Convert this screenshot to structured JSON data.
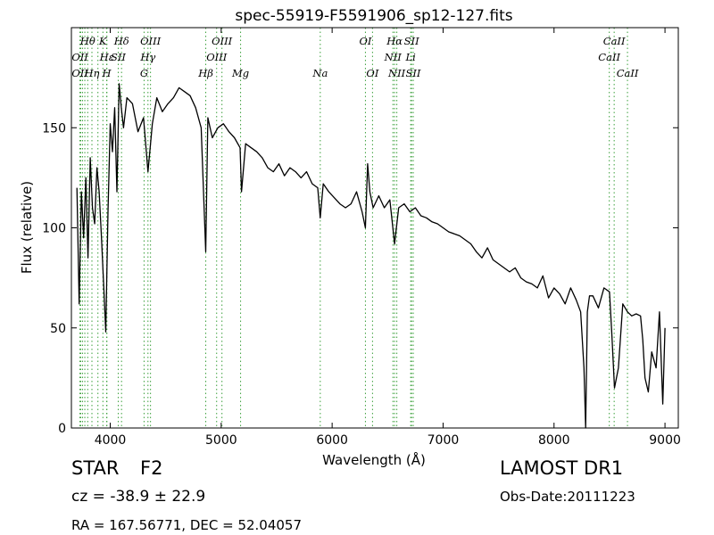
{
  "chart_data": {
    "type": "line",
    "title": "spec-55919-F5591906_sp12-127.fits",
    "xlabel": "Wavelength (Å)",
    "ylabel": "Flux (relative)",
    "xlim": [
      3650,
      9120
    ],
    "ylim": [
      0,
      200
    ],
    "x_ticks": [
      4000,
      5000,
      6000,
      7000,
      8000,
      9000
    ],
    "y_ticks": [
      0,
      50,
      100,
      150
    ],
    "grid": false,
    "line_color": "#000000",
    "marker_color": "#3ca03c",
    "series": [
      {
        "x": [
          3700,
          3720,
          3740,
          3760,
          3780,
          3800,
          3820,
          3840,
          3860,
          3880,
          3900,
          3920,
          3940,
          3960,
          3980,
          4000,
          4020,
          4040,
          4060,
          4080,
          4100,
          4120,
          4150,
          4200,
          4250,
          4300,
          4340,
          4380,
          4420,
          4470,
          4520,
          4570,
          4620,
          4670,
          4720,
          4770,
          4820,
          4861,
          4880,
          4920,
          4970,
          5020,
          5070,
          5120,
          5170,
          5183,
          5220,
          5270,
          5320,
          5370,
          5420,
          5470,
          5520,
          5570,
          5620,
          5670,
          5720,
          5770,
          5820,
          5870,
          5893,
          5920,
          5970,
          6020,
          6070,
          6120,
          6170,
          6220,
          6270,
          6300,
          6320,
          6340,
          6370,
          6420,
          6470,
          6520,
          6563,
          6600,
          6650,
          6700,
          6750,
          6800,
          6850,
          6900,
          6950,
          7000,
          7050,
          7100,
          7150,
          7200,
          7250,
          7300,
          7350,
          7400,
          7450,
          7500,
          7550,
          7600,
          7650,
          7700,
          7750,
          7800,
          7850,
          7900,
          7950,
          8000,
          8050,
          8100,
          8150,
          8200,
          8240,
          8270,
          8285,
          8300,
          8320,
          8350,
          8400,
          8450,
          8500,
          8520,
          8545,
          8580,
          8620,
          8662,
          8700,
          8740,
          8780,
          8800,
          8820,
          8850,
          8880,
          8920,
          8950,
          8980,
          9000
        ],
        "values": [
          120,
          62,
          118,
          95,
          125,
          85,
          135,
          110,
          102,
          130,
          118,
          96,
          72,
          48,
          108,
          152,
          138,
          160,
          118,
          172,
          160,
          150,
          165,
          162,
          148,
          155,
          128,
          152,
          165,
          158,
          162,
          165,
          170,
          168,
          166,
          160,
          150,
          88,
          155,
          145,
          150,
          152,
          148,
          145,
          140,
          118,
          142,
          140,
          138,
          135,
          130,
          128,
          132,
          126,
          130,
          128,
          125,
          128,
          122,
          120,
          105,
          122,
          118,
          115,
          112,
          110,
          112,
          118,
          108,
          100,
          132,
          118,
          110,
          116,
          110,
          114,
          92,
          110,
          112,
          108,
          110,
          106,
          105,
          103,
          102,
          100,
          98,
          97,
          96,
          94,
          92,
          88,
          85,
          90,
          84,
          82,
          80,
          78,
          80,
          75,
          73,
          72,
          70,
          76,
          65,
          70,
          67,
          62,
          70,
          64,
          58,
          30,
          0,
          58,
          66,
          66,
          60,
          70,
          68,
          48,
          20,
          30,
          62,
          58,
          56,
          57,
          56,
          44,
          25,
          18,
          38,
          30,
          58,
          12,
          50
        ]
      }
    ],
    "line_markers": {
      "top_row1": [
        {
          "label": "Hθ",
          "x": 3797
        },
        {
          "label": "K",
          "x": 3934
        },
        {
          "label": "Hδ",
          "x": 4102
        },
        {
          "label": "OIII",
          "x": 4363
        },
        {
          "label": "OIII",
          "x": 5007
        },
        {
          "label": "OI",
          "x": 6300
        },
        {
          "label": "Hα",
          "x": 6563
        },
        {
          "label": "SII",
          "x": 6716
        },
        {
          "label": "CaII",
          "x": 8542
        }
      ],
      "top_row2": [
        {
          "label": "OII",
          "x": 3727
        },
        {
          "label": "Hε",
          "x": 3970
        },
        {
          "label": "SII",
          "x": 4072
        },
        {
          "label": "Hγ",
          "x": 4340
        },
        {
          "label": "OIII",
          "x": 4959
        },
        {
          "label": "NII",
          "x": 6548
        },
        {
          "label": "Li",
          "x": 6708
        },
        {
          "label": "CaII",
          "x": 8498
        }
      ],
      "top_row3": [
        {
          "label": "OII",
          "x": 3727
        },
        {
          "label": "Hη",
          "x": 3835
        },
        {
          "label": "H",
          "x": 3968
        },
        {
          "label": "G",
          "x": 4305
        },
        {
          "label": "Hβ",
          "x": 4861
        },
        {
          "label": "Mg",
          "x": 5175
        },
        {
          "label": "Na",
          "x": 5893
        },
        {
          "label": "OI",
          "x": 6364
        },
        {
          "label": "NII",
          "x": 6583
        },
        {
          "label": "SII",
          "x": 6731
        },
        {
          "label": "CaII",
          "x": 8662
        }
      ],
      "dotted_x": [
        3727,
        3734,
        3750,
        3771,
        3797,
        3835,
        3889,
        3934,
        3968,
        3970,
        4072,
        4102,
        4305,
        4340,
        4363,
        4861,
        4959,
        5007,
        5175,
        5893,
        6300,
        6364,
        6548,
        6563,
        6583,
        6708,
        6716,
        6731,
        8498,
        8542,
        8662
      ]
    }
  },
  "info": {
    "object_type": "STAR",
    "subclass": "F2",
    "survey": "LAMOST DR1",
    "cz": "cz = -38.9 ± 22.9",
    "obs_date": "Obs-Date:20111223",
    "radec": "RA = 167.56771, DEC = 52.04057"
  }
}
